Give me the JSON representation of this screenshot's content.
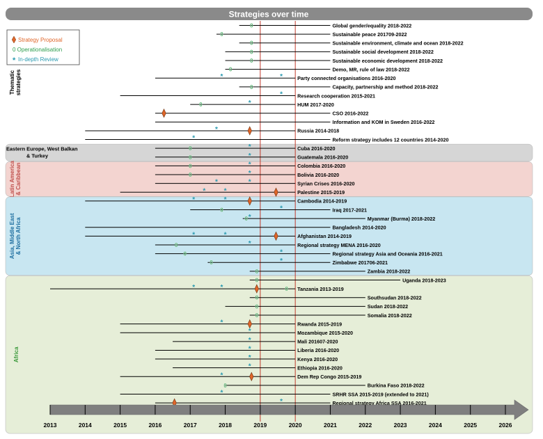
{
  "chart_data": {
    "type": "timeline",
    "title": "Strategies over time",
    "x_range": [
      2013,
      2026
    ],
    "x_ticks": [
      "2013",
      "2014",
      "2015",
      "2016",
      "2017",
      "2018",
      "2019",
      "2020",
      "2021",
      "2022",
      "2023",
      "2024",
      "2025",
      "2026"
    ],
    "reference_lines": [
      2019,
      2020
    ],
    "legend": {
      "placement": "top-left",
      "entries": [
        {
          "symbol": "diamond",
          "label": "Strategy Proposal",
          "color": "#e0662a"
        },
        {
          "symbol": "zero",
          "label": "0 Operationalisation",
          "color": "#2e9e4e"
        },
        {
          "symbol": "star",
          "label": "In-depth Review",
          "color": "#2a9ab0"
        }
      ]
    },
    "groups": [
      {
        "name": "Thematic strategies",
        "color": "#ffffff",
        "name_color": "#000000",
        "rows": [
          0,
          13
        ]
      },
      {
        "name": "Eastern Europe, West Balkan & Turkey",
        "color": "#d6d6d6",
        "name_color": "#000000",
        "rows": [
          14,
          15
        ]
      },
      {
        "name": "Latin America & Caribbean",
        "color": "#f3d4d0",
        "name_color": "#c0504d",
        "rows": [
          16,
          19
        ]
      },
      {
        "name": "Asia, Middle East & North Africa",
        "color": "#c8e6f1",
        "name_color": "#1f6fa0",
        "rows": [
          20,
          28
        ]
      },
      {
        "name": "Africa",
        "color": "#e6eed8",
        "name_color": "#3c9a3c",
        "rows": [
          29,
          46
        ]
      }
    ],
    "strategies": [
      {
        "label": "Global gender/equality 2018-2022",
        "start": 2018.4,
        "end": 2021.0,
        "op": [
          2018.75
        ],
        "rev": []
      },
      {
        "label": "Sustainable peace 201709-2022",
        "start": 2017.75,
        "end": 2021.0,
        "op": [
          2017.9
        ],
        "rev": []
      },
      {
        "label": "Sustainable environment, climate and ocean 2018-2022",
        "start": 2018.4,
        "end": 2021.0,
        "op": [
          2018.75
        ],
        "rev": []
      },
      {
        "label": "Sustainable social development 2018-2022",
        "start": 2018.0,
        "end": 2021.0,
        "op": [
          2018.75
        ],
        "rev": []
      },
      {
        "label": "Sustainable economic development 2018-2022",
        "start": 2018.0,
        "end": 2021.0,
        "op": [
          2018.75
        ],
        "rev": []
      },
      {
        "label": "Demo, MR, rule of law 2018-2022",
        "start": 2018.0,
        "end": 2021.0,
        "op": [
          2018.15
        ],
        "rev": []
      },
      {
        "label": "Party connected organisations 2016-2020",
        "start": 2016.0,
        "end": 2020.0,
        "op": [],
        "rev": [
          2017.9,
          2019.6
        ]
      },
      {
        "label": "Capacity, partnership and method 2018-2022",
        "start": 2018.4,
        "end": 2021.0,
        "op": [
          2018.75
        ],
        "rev": []
      },
      {
        "label": "Research cooperation 2015-2021",
        "start": 2015.0,
        "end": 2020.0,
        "op": [],
        "rev": [
          2019.6
        ]
      },
      {
        "label": "HUM 2017-2020",
        "start": 2017.0,
        "end": 2020.0,
        "op": [
          2017.3
        ],
        "rev": [
          2018.7
        ]
      },
      {
        "label": "CSO 2016-2022",
        "start": 2016.0,
        "end": 2021.0,
        "prop": [
          2016.25
        ],
        "op": [],
        "rev": []
      },
      {
        "label": "Information and KOM in Sweden 2016-2022",
        "start": 2016.0,
        "end": 2021.0,
        "op": [],
        "rev": []
      },
      {
        "label": "Russia 2014-2018",
        "start": 2014.0,
        "end": 2020.0,
        "prop": [
          2018.7
        ],
        "op": [],
        "rev": [
          2017.75
        ]
      },
      {
        "label": "Reform strategy includes 12 countries 2014-2020",
        "start": 2014.0,
        "end": 2021.0,
        "op": [],
        "rev": [
          2017.1
        ]
      },
      {
        "label": "Cuba 2016-2020",
        "start": 2016.0,
        "end": 2020.0,
        "op": [
          2017.0
        ],
        "rev": [
          2018.7
        ]
      },
      {
        "label": "Guatemala 2016-2020",
        "start": 2016.0,
        "end": 2020.0,
        "op": [
          2017.0
        ],
        "rev": [
          2018.7
        ]
      },
      {
        "label": "Colombia 2016-2020",
        "start": 2016.0,
        "end": 2020.0,
        "op": [
          2017.0
        ],
        "rev": [
          2018.7
        ]
      },
      {
        "label": "Bolivia 2016-2020",
        "start": 2016.0,
        "end": 2020.0,
        "op": [
          2017.0
        ],
        "rev": [
          2018.7
        ]
      },
      {
        "label": "Syrian Crises 2016-2020",
        "start": 2016.0,
        "end": 2020.0,
        "op": [],
        "rev": [
          2017.75,
          2018.7
        ]
      },
      {
        "label": "Palestine 2015-2019",
        "start": 2015.0,
        "end": 2020.0,
        "prop": [
          2019.45
        ],
        "op": [],
        "rev": [
          2017.4,
          2018.0
        ]
      },
      {
        "label": "Cambodia 2014-2019",
        "start": 2014.0,
        "end": 2020.0,
        "prop": [
          2018.7
        ],
        "op": [],
        "rev": [
          2017.1,
          2018.0
        ]
      },
      {
        "label": "Iraq 2017-2021",
        "start": 2017.0,
        "end": 2021.0,
        "op": [
          2017.9
        ],
        "rev": [
          2019.6
        ]
      },
      {
        "label": "Myanmar (Burma) 2018-2022",
        "start": 2018.5,
        "end": 2022.0,
        "op": [
          2018.6
        ],
        "rev": [
          2018.7
        ]
      },
      {
        "label": "Bangladesh 2014-2020",
        "start": 2014.0,
        "end": 2021.0,
        "op": [],
        "rev": []
      },
      {
        "label": "Afghanistan 2014-2019",
        "start": 2014.0,
        "end": 2020.0,
        "prop": [
          2019.45
        ],
        "op": [],
        "rev": [
          2017.1,
          2018.0
        ]
      },
      {
        "label": "Regional strategy MENA 2016-2020",
        "start": 2016.0,
        "end": 2020.0,
        "op": [
          2016.6
        ],
        "rev": [
          2018.7
        ]
      },
      {
        "label": "Regional strategy Asia and Oceania 2016-2021",
        "start": 2016.0,
        "end": 2021.0,
        "op": [
          2016.85
        ],
        "rev": [
          2019.6
        ]
      },
      {
        "label": "Zimbabwe 201706-2021",
        "start": 2017.5,
        "end": 2021.0,
        "op": [
          2017.6
        ],
        "rev": [
          2019.6
        ]
      },
      {
        "label": "Zambia 2018-2022",
        "start": 2018.7,
        "end": 2022.0,
        "op": [
          2018.9
        ],
        "rev": []
      },
      {
        "label": "Uganda 2018-2023",
        "start": 2018.7,
        "end": 2023.0,
        "op": [
          2018.9
        ],
        "rev": []
      },
      {
        "label": "Tanzania 2013-2019",
        "start": 2013.0,
        "end": 2020.0,
        "prop": [
          2018.9
        ],
        "op": [
          2019.75
        ],
        "rev": [
          2017.1,
          2017.9
        ]
      },
      {
        "label": "Southsudan 2018-2022",
        "start": 2018.7,
        "end": 2022.0,
        "op": [
          2018.9
        ],
        "rev": []
      },
      {
        "label": "Sudan 2018-2022",
        "start": 2018.0,
        "end": 2022.0,
        "op": [
          2018.9
        ],
        "rev": []
      },
      {
        "label": "Somalia 2018-2022",
        "start": 2018.7,
        "end": 2022.0,
        "op": [
          2018.9
        ],
        "rev": []
      },
      {
        "label": "Rwanda 2015-2019",
        "start": 2015.0,
        "end": 2020.0,
        "prop": [
          2018.7
        ],
        "op": [],
        "rev": [
          2017.9
        ]
      },
      {
        "label": "Mozambique 2015-2020",
        "start": 2015.0,
        "end": 2020.0,
        "op": [],
        "rev": [
          2018.7
        ]
      },
      {
        "label": "Mali 201607-2020",
        "start": 2016.5,
        "end": 2020.0,
        "op": [],
        "rev": [
          2018.7
        ]
      },
      {
        "label": "Liberia 2016-2020",
        "start": 2016.0,
        "end": 2020.0,
        "op": [],
        "rev": [
          2018.7
        ]
      },
      {
        "label": "Kenya 2016-2020",
        "start": 2016.0,
        "end": 2020.0,
        "op": [],
        "rev": [
          2018.7
        ]
      },
      {
        "label": "Ethiopia 2016-2020",
        "start": 2016.5,
        "end": 2020.0,
        "op": [],
        "rev": [
          2018.7
        ]
      },
      {
        "label": "Dem Rep Congo 2015-2019",
        "start": 2015.0,
        "end": 2020.0,
        "prop": [
          2018.75
        ],
        "op": [],
        "rev": [
          2017.9
        ]
      },
      {
        "label": "Burkina Faso 2018-2022",
        "start": 2018.0,
        "end": 2022.0,
        "op": [
          2018.0
        ],
        "rev": []
      },
      {
        "label": "SRHR SSA 2015-2019 (extended to 2021)",
        "start": 2015.0,
        "end": 2021.0,
        "op": [],
        "rev": [
          2017.9
        ]
      },
      {
        "label": "Regional strategy Africa SSA 2016-2021",
        "start": 2016.0,
        "end": 2021.0,
        "prop": [
          2016.55
        ],
        "op": [],
        "rev": [
          2019.6
        ]
      }
    ]
  }
}
